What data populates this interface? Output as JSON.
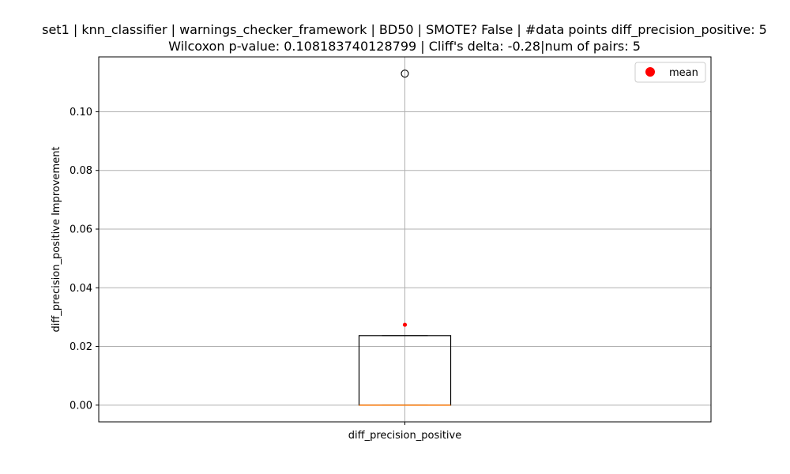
{
  "chart_data": {
    "type": "box",
    "title_line1": "set1 | knn_classifier | warnings_checker_framework | BD50 | SMOTE? False | #data points diff_precision_positive: 5",
    "title_line2": "Wilcoxon p-value: 0.108183740128799 | Cliff's delta: -0.28|num of pairs: 5",
    "xlabel": "",
    "ylabel": "diff_precision_positive Improvement",
    "categories": [
      "diff_precision_positive"
    ],
    "ylim": [
      -0.0057,
      0.1187
    ],
    "yticks": [
      0.0,
      0.02,
      0.04,
      0.06,
      0.08,
      0.1
    ],
    "ytick_labels": [
      "0.00",
      "0.02",
      "0.04",
      "0.06",
      "0.08",
      "0.10"
    ],
    "grid": true,
    "box": {
      "q1": 0.0,
      "median": 0.0,
      "q3": 0.0237,
      "whisker_low": 0.0,
      "whisker_high": 0.0237,
      "outliers": [
        0.113
      ],
      "mean": 0.0274
    },
    "legend": {
      "entries": [
        "mean"
      ],
      "placement": "top-right"
    },
    "colors": {
      "box": "#000000",
      "median": "#ff7f0e",
      "mean": "#ff0000",
      "grid": "#b0b0b0"
    }
  }
}
